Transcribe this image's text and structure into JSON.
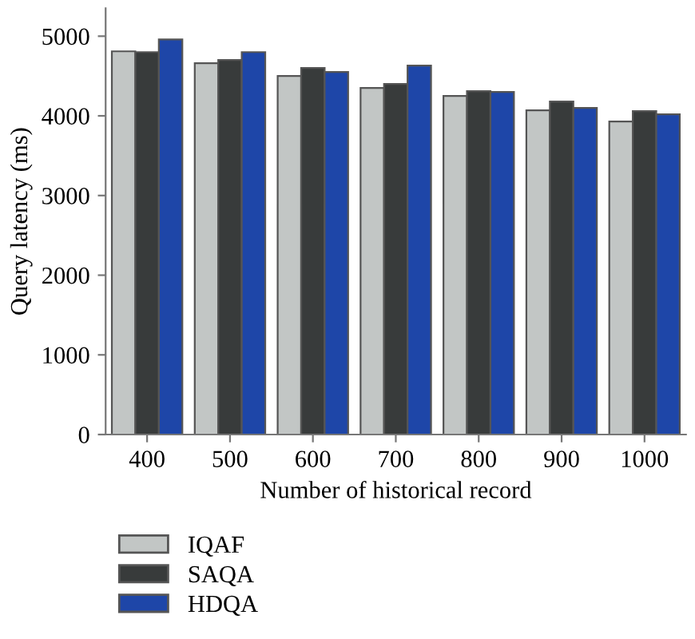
{
  "chart_data": {
    "type": "bar",
    "xlabel": "Number of historical record",
    "ylabel": "Query latency (ms)",
    "categories": [
      "400",
      "500",
      "600",
      "700",
      "800",
      "900",
      "1000"
    ],
    "series": [
      {
        "name": "IQAF",
        "color": "#c2c6c5",
        "values": [
          4810,
          4660,
          4500,
          4350,
          4250,
          4070,
          3930
        ]
      },
      {
        "name": "SAQA",
        "color": "#383b3b",
        "values": [
          4800,
          4700,
          4600,
          4400,
          4310,
          4180,
          4060
        ]
      },
      {
        "name": "HDQA",
        "color": "#1e46a8",
        "values": [
          4960,
          4800,
          4550,
          4630,
          4300,
          4100,
          4020
        ]
      }
    ],
    "ylim": [
      0,
      5350
    ],
    "yticks": [
      0,
      1000,
      2000,
      3000,
      4000,
      5000
    ],
    "grid": false,
    "legend": "bottom left"
  }
}
